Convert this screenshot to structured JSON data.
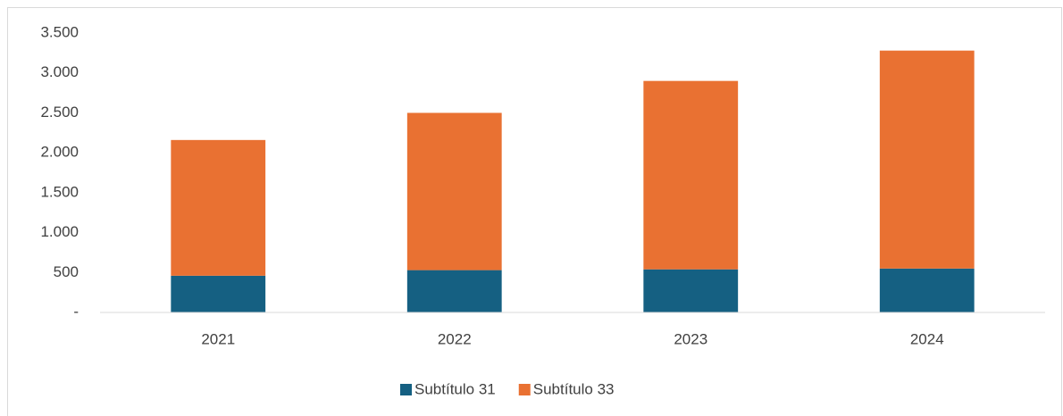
{
  "chart_data": {
    "type": "bar",
    "stacked": true,
    "categories": [
      "2021",
      "2022",
      "2023",
      "2024"
    ],
    "series": [
      {
        "name": "Subtítulo 31",
        "color": "#156082",
        "values": [
          460,
          530,
          540,
          550
        ]
      },
      {
        "name": "Subtítulo 33",
        "color": "#e97132",
        "values": [
          1700,
          1970,
          2360,
          2730
        ]
      }
    ],
    "ylim": [
      0,
      3500
    ],
    "yticks": [
      {
        "value": 0,
        "label": "-"
      },
      500,
      {
        "value": 1000,
        "label": "1.000"
      },
      {
        "value": 1500,
        "label": "1.500"
      },
      {
        "value": 2000,
        "label": "2.000"
      },
      {
        "value": 2500,
        "label": "2.500"
      },
      {
        "value": 3000,
        "label": "3.000"
      },
      {
        "value": 3500,
        "label": "3.500"
      }
    ],
    "grid": false,
    "legend": "bottom"
  }
}
